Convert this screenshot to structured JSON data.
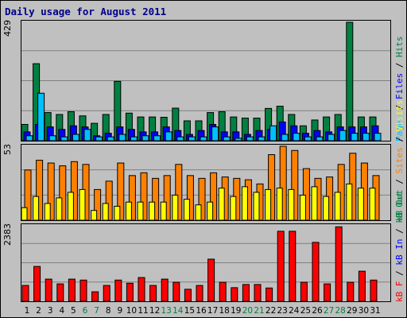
{
  "title": "Daily usage for August 2011",
  "colors": {
    "background": "#C0C0C0",
    "hits": "#008040",
    "files": "#0000FF",
    "pages": "#00C0FF",
    "sites": "#FF8000",
    "visits": "#FFFF00",
    "kb_f": "#FF0000",
    "kb_in": "#0000FF",
    "kb_out": "#008040",
    "weekend_label": "#008040",
    "weekday_label": "#000000"
  },
  "legends": {
    "top": [
      {
        "text": "Pages",
        "color": "#00C0FF"
      },
      {
        "text": " / ",
        "color": "#000000"
      },
      {
        "text": "Files",
        "color": "#0000FF"
      },
      {
        "text": " / ",
        "color": "#000000"
      },
      {
        "text": "Hits",
        "color": "#008040"
      }
    ],
    "mid": [
      {
        "text": "kB Out",
        "color": "#008040"
      },
      {
        "text": " / ",
        "color": "#000000"
      },
      {
        "text": "Sites",
        "color": "#FF8000"
      },
      {
        "text": " / ",
        "color": "#000000"
      },
      {
        "text": "Visits",
        "color": "#FFFF00"
      }
    ],
    "bot": [
      {
        "text": "kB F",
        "color": "#FF0000"
      },
      {
        "text": " / ",
        "color": "#000000"
      },
      {
        "text": "kB In",
        "color": "#0000FF"
      },
      {
        "text": " / ",
        "color": "#000000"
      },
      {
        "text": "kB Out",
        "color": "#008040"
      }
    ]
  },
  "chart_data": [
    {
      "type": "bar",
      "panel": "hits-files-pages",
      "ymax_label": "429",
      "ylim": [
        0,
        429
      ],
      "categories": [
        "1",
        "2",
        "3",
        "4",
        "5",
        "6",
        "7",
        "8",
        "9",
        "10",
        "11",
        "12",
        "13",
        "14",
        "15",
        "16",
        "17",
        "18",
        "19",
        "20",
        "21",
        "22",
        "23",
        "24",
        "25",
        "26",
        "27",
        "28",
        "29",
        "30",
        "31"
      ],
      "weekend_days": [
        "6",
        "7",
        "13",
        "14",
        "20",
        "21",
        "27",
        "28"
      ],
      "series": [
        {
          "name": "Hits",
          "color": "#008040",
          "values": [
            59,
            279,
            102,
            95,
            105,
            90,
            63,
            95,
            215,
            100,
            86,
            86,
            85,
            118,
            72,
            72,
            102,
            105,
            86,
            82,
            82,
            117,
            125,
            95,
            54,
            75,
            86,
            95,
            429,
            86,
            86
          ]
        },
        {
          "name": "Files",
          "color": "#0000FF",
          "values": [
            32,
            59,
            50,
            41,
            54,
            50,
            18,
            27,
            50,
            41,
            32,
            32,
            50,
            37,
            23,
            37,
            59,
            32,
            32,
            23,
            37,
            41,
            68,
            54,
            27,
            37,
            32,
            50,
            50,
            50,
            54
          ]
        },
        {
          "name": "Pages",
          "color": "#00C0FF",
          "values": [
            18,
            172,
            18,
            14,
            23,
            41,
            14,
            14,
            23,
            14,
            18,
            18,
            32,
            14,
            14,
            14,
            50,
            14,
            9,
            14,
            14,
            54,
            23,
            27,
            14,
            14,
            23,
            37,
            27,
            27,
            27
          ]
        }
      ]
    },
    {
      "type": "bar",
      "panel": "visits-sites",
      "ymax_label": "53",
      "ylim": [
        0,
        53
      ],
      "categories": [
        "1",
        "2",
        "3",
        "4",
        "5",
        "6",
        "7",
        "8",
        "9",
        "10",
        "11",
        "12",
        "13",
        "14",
        "15",
        "16",
        "17",
        "18",
        "19",
        "20",
        "21",
        "22",
        "23",
        "24",
        "25",
        "26",
        "27",
        "28",
        "29",
        "30",
        "31"
      ],
      "weekend_days": [
        "6",
        "7",
        "13",
        "14",
        "20",
        "21",
        "27",
        "28"
      ],
      "series": [
        {
          "name": "Visits",
          "color": "#FFFF00",
          "values": [
            9,
            17,
            12,
            16,
            20,
            22,
            7,
            12,
            10,
            13,
            13,
            13,
            13,
            18,
            15,
            11,
            13,
            23,
            17,
            24,
            20,
            22,
            23,
            22,
            18,
            24,
            17,
            20,
            26,
            23,
            23
          ]
        },
        {
          "name": "Sites",
          "color": "#FF8000",
          "values": [
            36,
            43,
            41,
            39,
            42,
            40,
            22,
            28,
            41,
            32,
            34,
            30,
            32,
            40,
            32,
            30,
            34,
            31,
            30,
            29,
            26,
            47,
            53,
            50,
            37,
            30,
            31,
            40,
            48,
            41,
            32
          ]
        }
      ]
    },
    {
      "type": "bar",
      "panel": "kbytes",
      "ymax_label": "2383",
      "ylim": [
        0,
        2383
      ],
      "categories": [
        "1",
        "2",
        "3",
        "4",
        "5",
        "6",
        "7",
        "8",
        "9",
        "10",
        "11",
        "12",
        "13",
        "14",
        "15",
        "16",
        "17",
        "18",
        "19",
        "20",
        "21",
        "22",
        "23",
        "24",
        "25",
        "26",
        "27",
        "28",
        "29",
        "30",
        "31"
      ],
      "weekend_days": [
        "6",
        "7",
        "13",
        "14",
        "20",
        "21",
        "27",
        "28"
      ],
      "series": [
        {
          "name": "kB F",
          "color": "#FF0000",
          "values": [
            500,
            1100,
            700,
            550,
            700,
            670,
            300,
            500,
            670,
            570,
            750,
            500,
            700,
            600,
            380,
            500,
            1330,
            600,
            430,
            530,
            530,
            420,
            2210,
            2210,
            600,
            1860,
            550,
            2350,
            600,
            950,
            670
          ]
        }
      ]
    }
  ]
}
